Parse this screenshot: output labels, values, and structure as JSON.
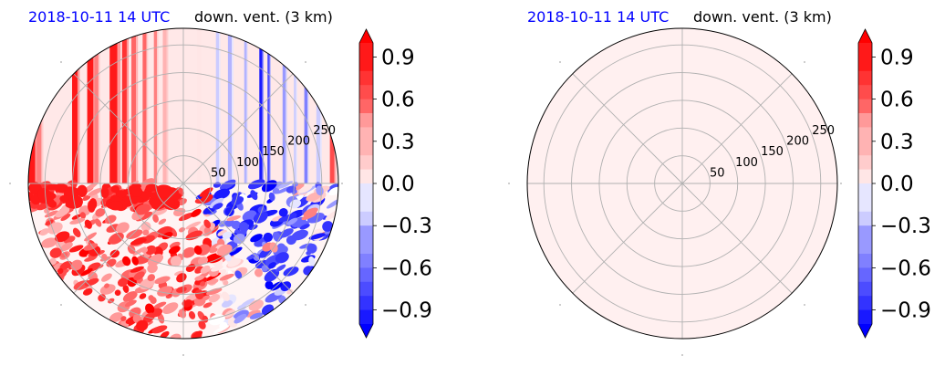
{
  "colors": {
    "title_date": "#0000ff",
    "positive": "#ff0000",
    "negative": "#0000ff",
    "neutral": "#ffffff",
    "grid": "#b0b0b0",
    "right_panel_fill": "#fff0f0"
  },
  "chart_data": [
    {
      "type": "heatmap",
      "projection": "polar",
      "title_date": "2018-10-11 14 UTC",
      "title_var": "down. vent. (3 km)",
      "radial_ticks": [
        "50",
        "100",
        "150",
        "200",
        "250"
      ],
      "radial_values": [
        50,
        100,
        150,
        200,
        250
      ],
      "rmax": 280,
      "grid": true,
      "colorbar": {
        "ticks": [
          "0.9",
          "0.6",
          "0.3",
          "0.0",
          "−0.3",
          "−0.6",
          "−0.9"
        ],
        "tick_values": [
          0.9,
          0.6,
          0.3,
          0.0,
          -0.3,
          -0.6,
          -0.9
        ],
        "vmin": -1.0,
        "vmax": 1.0,
        "levels": 21,
        "extend": "both",
        "cmap": "bwr"
      },
      "field": {
        "upper_half": "vertical stripes",
        "stripe_columns": [
          {
            "xn": -0.98,
            "w": 0.05,
            "v": 0.9
          },
          {
            "xn": -0.93,
            "w": 0.03,
            "v": 0.5
          },
          {
            "xn": -0.7,
            "w": 0.035,
            "v": 0.85
          },
          {
            "xn": -0.6,
            "w": 0.04,
            "v": 0.9
          },
          {
            "xn": -0.56,
            "w": 0.025,
            "v": 0.5
          },
          {
            "xn": -0.45,
            "w": 0.05,
            "v": 0.95
          },
          {
            "xn": -0.38,
            "w": 0.03,
            "v": 0.8
          },
          {
            "xn": -0.32,
            "w": 0.03,
            "v": 0.6
          },
          {
            "xn": -0.25,
            "w": 0.025,
            "v": 0.55
          },
          {
            "xn": -0.18,
            "w": 0.02,
            "v": 0.5
          },
          {
            "xn": -0.12,
            "w": 0.025,
            "v": 0.35
          },
          {
            "xn": 0.1,
            "w": 0.02,
            "v": 0.15
          },
          {
            "xn": 0.22,
            "w": 0.02,
            "v": -0.2
          },
          {
            "xn": 0.3,
            "w": 0.025,
            "v": -0.3
          },
          {
            "xn": 0.4,
            "w": 0.015,
            "v": -0.35
          },
          {
            "xn": 0.5,
            "w": 0.02,
            "v": -0.9
          },
          {
            "xn": 0.55,
            "w": 0.015,
            "v": -0.7
          },
          {
            "xn": 0.65,
            "w": 0.02,
            "v": -0.4
          },
          {
            "xn": 0.72,
            "w": 0.015,
            "v": -0.25
          },
          {
            "xn": 0.79,
            "w": 0.02,
            "v": -0.5
          },
          {
            "xn": 0.87,
            "w": 0.025,
            "v": -0.2
          },
          {
            "xn": 0.96,
            "w": 0.03,
            "v": 0.7
          }
        ],
        "lower_half": "speckled red/blue blobs"
      }
    },
    {
      "type": "heatmap",
      "projection": "polar",
      "title_date": "2018-10-11 14 UTC",
      "title_var": "down. vent. (3 km)",
      "radial_ticks": [
        "50",
        "100",
        "150",
        "200",
        "250"
      ],
      "radial_values": [
        50,
        100,
        150,
        200,
        250
      ],
      "rmax": 280,
      "grid": true,
      "colorbar": {
        "ticks": [
          "0.9",
          "0.6",
          "0.3",
          "0.0",
          "−0.3",
          "−0.6",
          "−0.9"
        ],
        "tick_values": [
          0.9,
          0.6,
          0.3,
          0.0,
          -0.3,
          -0.6,
          -0.9
        ],
        "vmin": -1.0,
        "vmax": 1.0,
        "levels": 21,
        "extend": "both",
        "cmap": "bwr"
      },
      "field": {
        "uniform_value": 0.05
      }
    }
  ]
}
